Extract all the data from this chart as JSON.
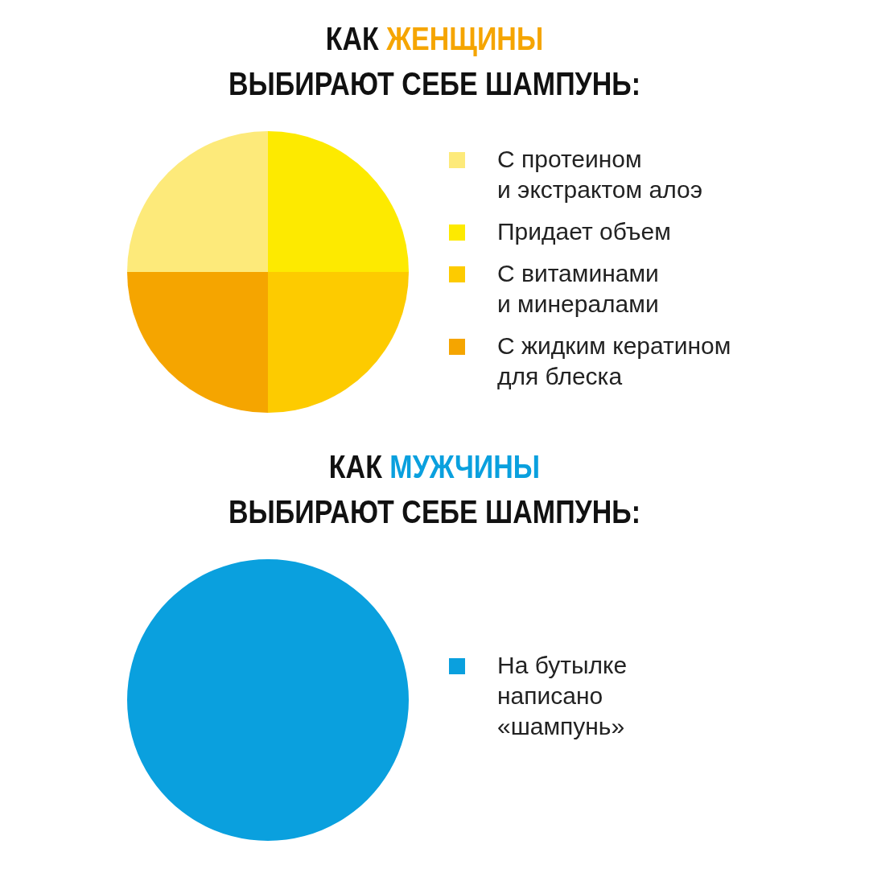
{
  "chart_data": [
    {
      "type": "pie",
      "title": "КАК ЖЕНЩИНЫ ВЫБИРАЮТ СЕБЕ ШАМПУНЬ:",
      "categories": [
        "С протеином\nи экстрактом алоэ",
        "Придает объем",
        "С витаминами\nи минералами",
        "С жидким кератином\nдля блеска"
      ],
      "values": [
        25,
        25,
        25,
        25
      ],
      "colors": [
        "#fdea7a",
        "#fdea00",
        "#fdcb00",
        "#f5a500"
      ],
      "legend": "right"
    },
    {
      "type": "pie",
      "title": "КАК МУЖЧИНЫ ВЫБИРАЮТ СЕБЕ ШАМПУНЬ:",
      "categories": [
        "На бутылке\nнаписано\n«шампунь»"
      ],
      "values": [
        100
      ],
      "colors": [
        "#0aa0de"
      ],
      "legend": "right"
    }
  ]
}
